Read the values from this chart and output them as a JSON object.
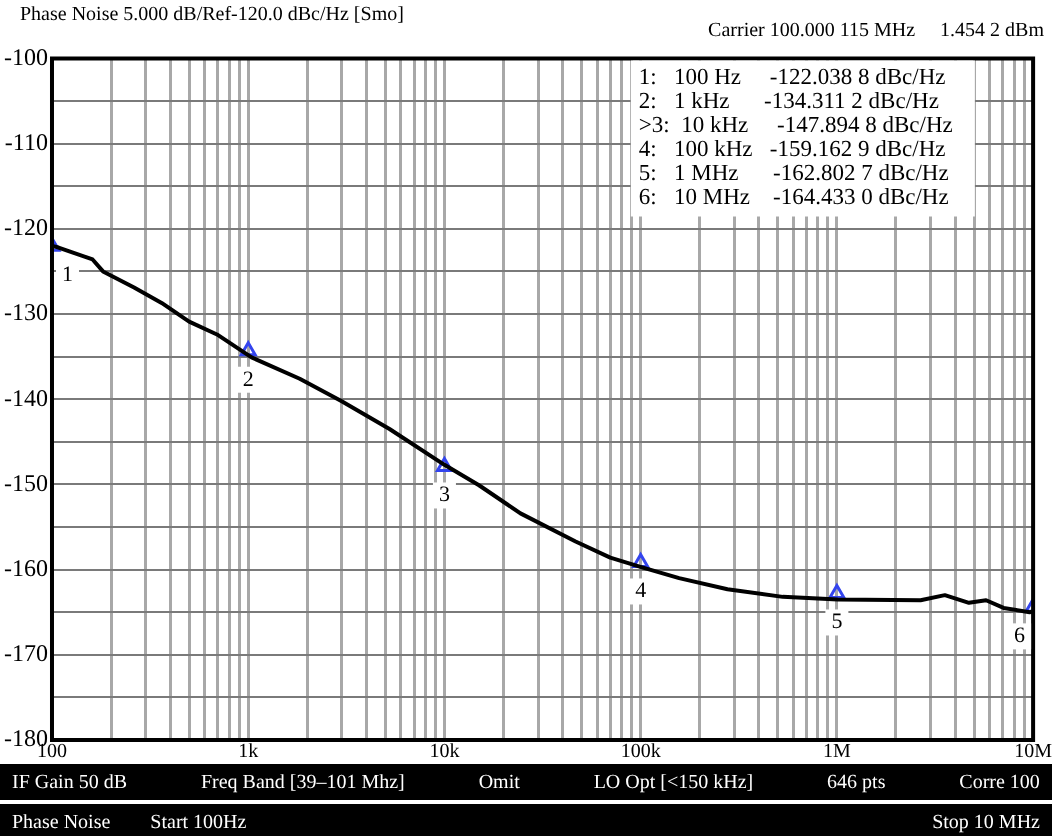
{
  "chart_data": {
    "type": "line",
    "title": "Phase Noise 5.000 dB/Ref-120.0 dBc/Hz [Smo]",
    "subtitle": "Carrier 100.000 115 MHz     1.454 2 dBm",
    "log": "x",
    "grid": true,
    "xlim": [
      100,
      10000000
    ],
    "xticks": [
      100,
      {
        "value": 200,
        "label": null
      },
      {
        "value": 300,
        "label": null
      },
      {
        "value": 400,
        "label": null
      },
      {
        "value": 500,
        "label": null
      },
      {
        "value": 600,
        "label": null
      },
      {
        "value": 700,
        "label": null
      },
      {
        "value": 800,
        "label": null
      },
      {
        "value": 900,
        "label": null
      },
      {
        "value": 1000,
        "label": "1k"
      },
      {
        "value": 2000,
        "label": null
      },
      {
        "value": 3000,
        "label": null
      },
      {
        "value": 4000,
        "label": null
      },
      {
        "value": 5000,
        "label": null
      },
      {
        "value": 6000,
        "label": null
      },
      {
        "value": 7000,
        "label": null
      },
      {
        "value": 8000,
        "label": null
      },
      {
        "value": 9000,
        "label": null
      },
      {
        "value": 10000,
        "label": "10k"
      },
      {
        "value": 20000,
        "label": null
      },
      {
        "value": 30000,
        "label": null
      },
      {
        "value": 40000,
        "label": null
      },
      {
        "value": 50000,
        "label": null
      },
      {
        "value": 60000,
        "label": null
      },
      {
        "value": 70000,
        "label": null
      },
      {
        "value": 80000,
        "label": null
      },
      {
        "value": 90000,
        "label": null
      },
      {
        "value": 100000,
        "label": "100k"
      },
      {
        "value": 200000,
        "label": null
      },
      {
        "value": 300000,
        "label": null
      },
      {
        "value": 400000,
        "label": null
      },
      {
        "value": 500000,
        "label": null
      },
      {
        "value": 600000,
        "label": null
      },
      {
        "value": 700000,
        "label": null
      },
      {
        "value": 800000,
        "label": null
      },
      {
        "value": 900000,
        "label": null
      },
      {
        "value": 1000000,
        "label": "1M"
      },
      {
        "value": 2000000,
        "label": null
      },
      {
        "value": 3000000,
        "label": null
      },
      {
        "value": 4000000,
        "label": null
      },
      {
        "value": 5000000,
        "label": null
      },
      {
        "value": 6000000,
        "label": null
      },
      {
        "value": 7000000,
        "label": null
      },
      {
        "value": 8000000,
        "label": null
      },
      {
        "value": 9000000,
        "label": null
      },
      {
        "value": 10000000,
        "label": "10M"
      }
    ],
    "ylim": [
      -180,
      -100
    ],
    "yticks": [
      -180,
      {
        "value": -175,
        "label": null
      },
      -170,
      {
        "value": -165,
        "label": null
      },
      -160,
      {
        "value": -155,
        "label": null
      },
      -150,
      {
        "value": -145,
        "label": null
      },
      -140,
      {
        "value": -135,
        "label": null
      },
      -130,
      {
        "value": -125,
        "label": null
      },
      -120,
      {
        "value": -115,
        "label": null
      },
      -110,
      {
        "value": -105,
        "label": null
      },
      -100
    ],
    "series": [
      {
        "color": "#000000",
        "marker": "none",
        "x": [
          100,
          108,
          161,
          182,
          262,
          362,
          500,
          693,
          1040,
          1830,
          2980,
          5250,
          10000,
          15000,
          24400,
          46600,
          70000,
          100700,
          157000,
          277000,
          530000,
          1010000,
          2670000,
          3550000,
          4710000,
          5760000,
          7070000,
          9600000,
          10000000
        ],
        "values": [
          -122.0,
          -122.2,
          -123.6,
          -125.0,
          -126.9,
          -128.7,
          -130.9,
          -132.4,
          -135.1,
          -137.6,
          -140.2,
          -143.5,
          -147.7,
          -150.1,
          -153.4,
          -156.7,
          -158.6,
          -159.7,
          -161.0,
          -162.3,
          -163.2,
          -163.5,
          -163.6,
          -163.0,
          -163.9,
          -163.6,
          -164.5,
          -165.0,
          -164.9
        ]
      },
      {
        "type": "scatter",
        "color": "#3344ee",
        "marker": "triangle",
        "x": [
          100,
          1000,
          10000,
          100000,
          1000000,
          10000000
        ],
        "values": [
          -122.0388,
          -134.3112,
          -147.8948,
          -159.1629,
          -162.8027,
          -164.433
        ]
      }
    ],
    "annotations": [
      "1:   100 Hz     -122.038 8 dBc/Hz",
      "2:   1 kHz      -134.311 2 dBc/Hz",
      ">3:  10 kHz     -147.894 8 dBc/Hz",
      "4:   100 kHz   -159.162 9 dBc/Hz",
      "5:   1 MHz      -162.802 7 dBc/Hz",
      "6:   10 MHz    -164.433 0 dBc/Hz",
      {
        "text": "1",
        "x": 100,
        "y": -122.0388
      },
      {
        "text": "2",
        "x": 1000,
        "y": -134.3112
      },
      {
        "text": "3",
        "x": 10000,
        "y": -147.8948
      },
      {
        "text": "4",
        "x": 100000,
        "y": -159.1629
      },
      {
        "text": "5",
        "x": 1000000,
        "y": -162.8027
      },
      {
        "text": "6",
        "x": 10000000,
        "y": -164.433
      },
      "IF Gain 50 dB",
      "Freq Band [39–101 Mhz]",
      "Omit",
      "LO Opt [<150 kHz]",
      "646 pts",
      "Corre 100",
      "Phase Noise",
      "Start 100Hz",
      "Stop 10 MHz"
    ]
  }
}
